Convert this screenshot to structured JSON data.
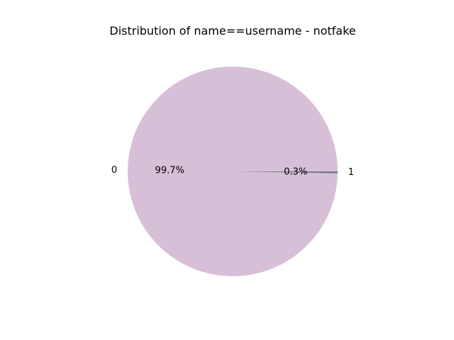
{
  "chart_data": {
    "type": "pie",
    "title": "Distribution of name==username - notfake",
    "categories": [
      "0",
      "1"
    ],
    "values": [
      99.7,
      0.3
    ],
    "percent_labels": [
      "99.7%",
      "0.3%"
    ],
    "colors": [
      "#d8bfd8",
      "#708090"
    ],
    "start_angle": "0 degrees (east), counter-clockwise",
    "legend": "none"
  }
}
